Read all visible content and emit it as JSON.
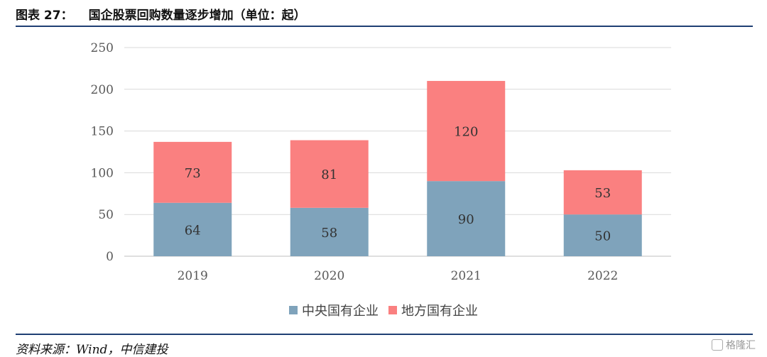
{
  "header": {
    "figure_number": "图表 27：",
    "title": "国企股票回购数量逐步增加（单位：起）"
  },
  "chart_data": {
    "type": "bar",
    "stacked": true,
    "categories": [
      "2019",
      "2020",
      "2021",
      "2022"
    ],
    "series": [
      {
        "name": "中央国有企业",
        "values": [
          64,
          58,
          90,
          50
        ],
        "color": "#7fa3bb"
      },
      {
        "name": "地方国有企业",
        "values": [
          73,
          81,
          120,
          53
        ],
        "color": "#fa8080"
      }
    ],
    "ylim": [
      0,
      250
    ],
    "yticks": [
      0,
      50,
      100,
      150,
      200,
      250
    ],
    "grid": true,
    "legend_position": "bottom"
  },
  "footer": {
    "source": "资料来源：Wind，中信建投",
    "watermark": "格隆汇"
  }
}
